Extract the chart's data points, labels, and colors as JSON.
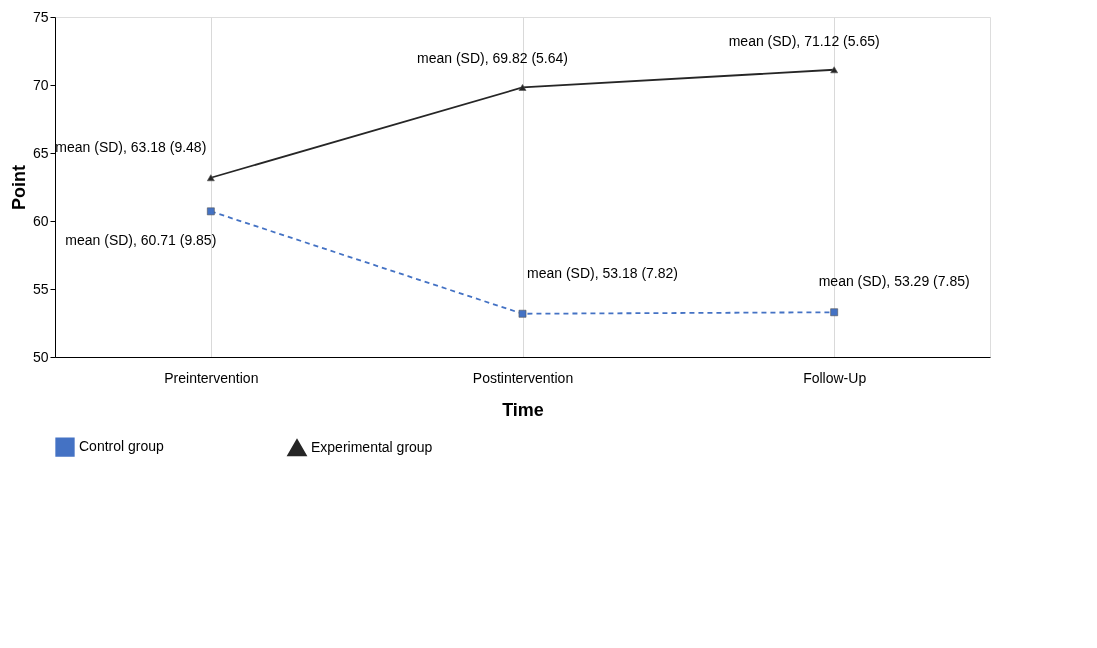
{
  "chart_data": {
    "type": "line",
    "xlabel": "Time",
    "ylabel": "Point",
    "categories": [
      "Preintervention",
      "Postintervention",
      "Follow-Up"
    ],
    "series": [
      {
        "name": "Control group",
        "color": "#4472c4",
        "values": [
          60.71,
          53.18,
          53.29
        ],
        "marker": "square",
        "line_style": "dashed"
      },
      {
        "name": "Experimental group",
        "color": "#262626",
        "values": [
          63.18,
          69.82,
          71.12
        ],
        "marker": "triangle",
        "line_style": "solid"
      }
    ],
    "annotations": [
      {
        "text": "mean (SD), 60.71 (9.85)",
        "x": "Preintervention",
        "y": 60.71
      },
      {
        "text": "mean (SD), 53.18 (7.82)",
        "x": "Postintervention",
        "y": 53.18
      },
      {
        "text": "mean (SD), 53.29 (7.85)",
        "x": "Follow-Up",
        "y": 53.29
      },
      {
        "text": "mean (SD), 63.18 (9.48)",
        "x": "Preintervention",
        "y": 63.18
      },
      {
        "text": "mean (SD), 69.82 (5.64)",
        "x": "Postintervention",
        "y": 69.82
      },
      {
        "text": "mean (SD), 71.12 (5.65)",
        "x": "Follow-Up",
        "y": 71.12
      }
    ],
    "ylim": [
      50,
      75
    ],
    "yticks": [
      50,
      55,
      60,
      65,
      70,
      75
    ],
    "grid": "x",
    "legend": "bottom"
  }
}
